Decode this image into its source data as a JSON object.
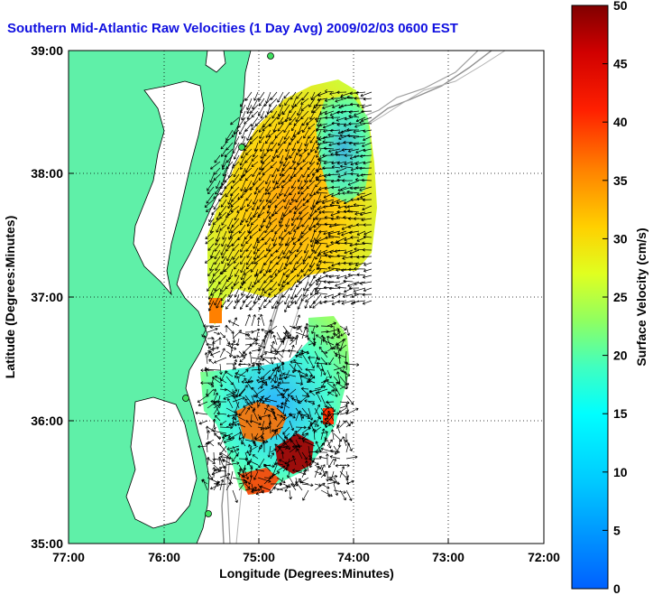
{
  "title": "Southern Mid-Atlantic Raw Velocities (1 Day Avg) 2009/02/03 0600 EST",
  "map": {
    "x_label": "Longitude (Degrees:Minutes)",
    "y_label": "Latitude (Degrees:Minutes)",
    "x_ticks": [
      "77:00",
      "76:00",
      "75:00",
      "74:00",
      "73:00",
      "72:00"
    ],
    "y_ticks": [
      "39:00",
      "38:00",
      "37:00",
      "36:00",
      "35:00"
    ],
    "land_color": "#5ff0a8",
    "water_color": "#ffffff"
  },
  "colorbar": {
    "label": "Surface Velocity (cm/s)",
    "ticks": [
      "50",
      "45",
      "40",
      "35",
      "30",
      "25",
      "20",
      "15",
      "10",
      "5",
      "0"
    ],
    "range": [
      0,
      50
    ]
  }
}
